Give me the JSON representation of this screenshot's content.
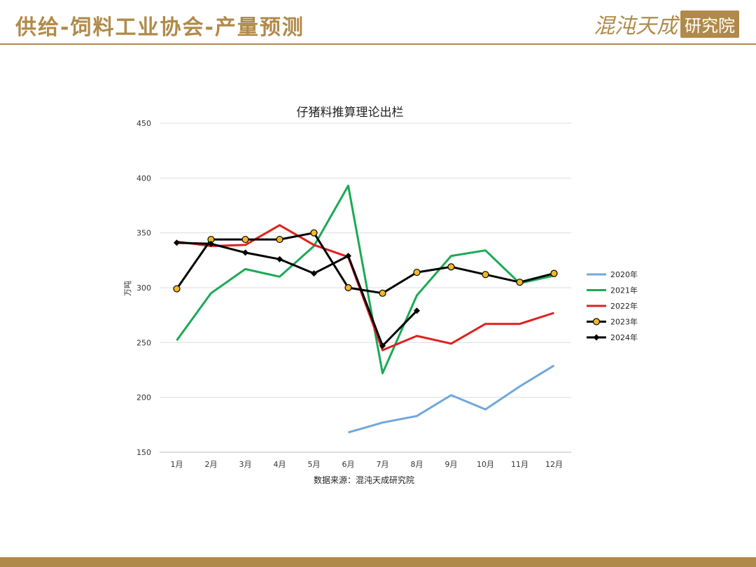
{
  "header": {
    "title": "供给-饲料工业协会-产量预测",
    "logo_text": "混沌天成",
    "logo_box": "研究院"
  },
  "chart_data": {
    "type": "line",
    "title": "仔猪料推算理论出栏",
    "xlabel": "",
    "ylabel": "万吨",
    "source": "数据来源：混沌天成研究院",
    "categories": [
      "1月",
      "2月",
      "3月",
      "4月",
      "5月",
      "6月",
      "7月",
      "8月",
      "9月",
      "10月",
      "11月",
      "12月"
    ],
    "ylim": [
      150,
      450
    ],
    "yticks": [
      150,
      200,
      250,
      300,
      350,
      400,
      450
    ],
    "grid": true,
    "legend_position": "right",
    "series": [
      {
        "name": "2020年",
        "color": "#6fa8dc",
        "marker": "none",
        "values": [
          null,
          null,
          null,
          null,
          null,
          168,
          177,
          183,
          202,
          189,
          210,
          229
        ]
      },
      {
        "name": "2021年",
        "color": "#1aaa55",
        "marker": "none",
        "values": [
          252,
          295,
          317,
          310,
          338,
          393,
          222,
          293,
          329,
          334,
          304,
          311
        ]
      },
      {
        "name": "2022年",
        "color": "#e02020",
        "marker": "none",
        "values": [
          342,
          338,
          339,
          357,
          339,
          328,
          243,
          256,
          249,
          267,
          267,
          277
        ]
      },
      {
        "name": "2023年",
        "color": "#000000",
        "marker": "circle",
        "values": [
          299,
          344,
          344,
          344,
          350,
          300,
          295,
          314,
          319,
          312,
          305,
          313
        ]
      },
      {
        "name": "2024年",
        "color": "#000000",
        "marker": "diamond",
        "values": [
          341,
          340,
          332,
          326,
          313,
          329,
          247,
          279,
          null,
          null,
          null,
          null
        ]
      }
    ]
  }
}
